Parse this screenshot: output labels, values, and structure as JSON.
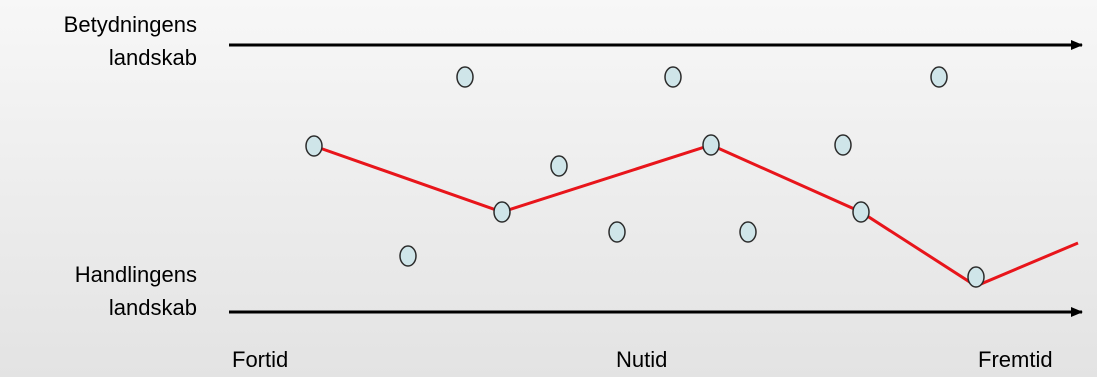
{
  "labels": {
    "top_axis": [
      "Betydningens",
      "landskab"
    ],
    "bottom_axis": [
      "Handlingens",
      "landskab"
    ],
    "time_start": "Fortid",
    "time_middle": "Nutid",
    "time_end": "Fremtid"
  },
  "colors": {
    "path": "#e8151b",
    "node_fill": "#cfe5e9",
    "node_stroke": "#2b2b2b",
    "axis": "#000000"
  }
}
